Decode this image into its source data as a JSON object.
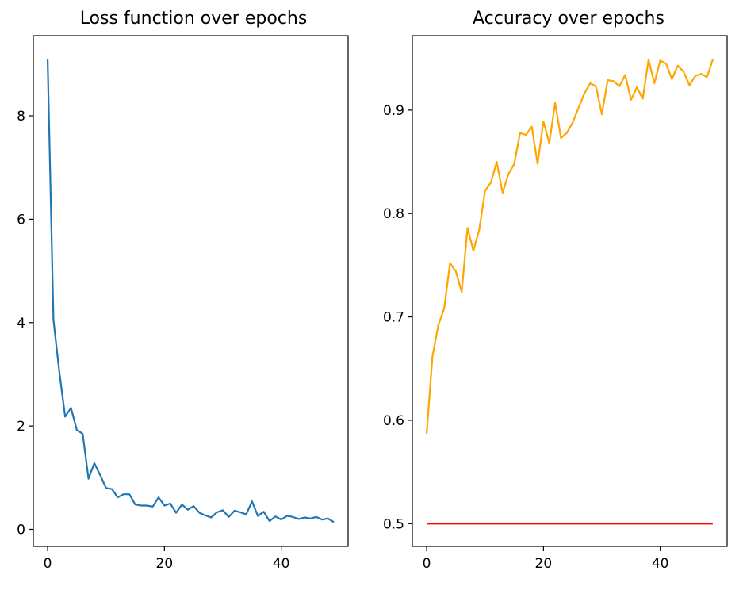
{
  "chart_data": [
    {
      "type": "line",
      "title": "Loss function over epochs",
      "xlabel": "",
      "ylabel": "",
      "xlim": [
        -2.45,
        51.45
      ],
      "ylim": [
        -0.33,
        9.55
      ],
      "xticks": [
        0,
        20,
        40
      ],
      "yticks": [
        0,
        2,
        4,
        6,
        8
      ],
      "grid": false,
      "series": [
        {
          "color": "#1f77b4",
          "x": [
            0,
            1,
            2,
            3,
            4,
            5,
            6,
            7,
            8,
            9,
            10,
            11,
            12,
            13,
            14,
            15,
            16,
            17,
            18,
            19,
            20,
            21,
            22,
            23,
            24,
            25,
            26,
            27,
            28,
            29,
            30,
            31,
            32,
            33,
            34,
            35,
            36,
            37,
            38,
            39,
            40,
            41,
            42,
            43,
            44,
            45,
            46,
            47,
            48,
            49
          ],
          "y": [
            9.1,
            4.05,
            3.05,
            2.18,
            2.35,
            1.92,
            1.85,
            0.98,
            1.28,
            1.05,
            0.8,
            0.78,
            0.62,
            0.68,
            0.68,
            0.48,
            0.46,
            0.46,
            0.44,
            0.62,
            0.46,
            0.5,
            0.32,
            0.48,
            0.38,
            0.45,
            0.32,
            0.27,
            0.23,
            0.33,
            0.37,
            0.24,
            0.36,
            0.33,
            0.29,
            0.54,
            0.26,
            0.34,
            0.16,
            0.25,
            0.19,
            0.26,
            0.24,
            0.2,
            0.23,
            0.21,
            0.24,
            0.19,
            0.21,
            0.14
          ]
        }
      ]
    },
    {
      "type": "line",
      "title": "Accuracy over epochs",
      "xlabel": "",
      "ylabel": "",
      "xlim": [
        -2.45,
        51.45
      ],
      "ylim": [
        0.478,
        0.972
      ],
      "xticks": [
        0,
        20,
        40
      ],
      "yticks": [
        0.5,
        0.6,
        0.7,
        0.8,
        0.9
      ],
      "ytick_labels": [
        "0.5",
        "0.6",
        "0.7",
        "0.8",
        "0.9"
      ],
      "grid": false,
      "series": [
        {
          "color": "#ffa500",
          "x": [
            0,
            1,
            2,
            3,
            4,
            5,
            6,
            7,
            8,
            9,
            10,
            11,
            12,
            13,
            14,
            15,
            16,
            17,
            18,
            19,
            20,
            21,
            22,
            23,
            24,
            25,
            26,
            27,
            28,
            29,
            30,
            31,
            32,
            33,
            34,
            35,
            36,
            37,
            38,
            39,
            40,
            41,
            42,
            43,
            44,
            45,
            46,
            47,
            48,
            49
          ],
          "y": [
            0.587,
            0.662,
            0.692,
            0.708,
            0.752,
            0.744,
            0.724,
            0.786,
            0.764,
            0.784,
            0.822,
            0.83,
            0.85,
            0.82,
            0.838,
            0.848,
            0.878,
            0.876,
            0.884,
            0.848,
            0.889,
            0.868,
            0.907,
            0.873,
            0.878,
            0.888,
            0.902,
            0.916,
            0.926,
            0.923,
            0.896,
            0.929,
            0.928,
            0.923,
            0.934,
            0.91,
            0.922,
            0.911,
            0.949,
            0.926,
            0.948,
            0.945,
            0.93,
            0.943,
            0.937,
            0.924,
            0.933,
            0.935,
            0.932,
            0.949
          ]
        },
        {
          "color": "#ff0000",
          "x": [
            0,
            49
          ],
          "y": [
            0.5,
            0.5
          ]
        }
      ]
    }
  ]
}
